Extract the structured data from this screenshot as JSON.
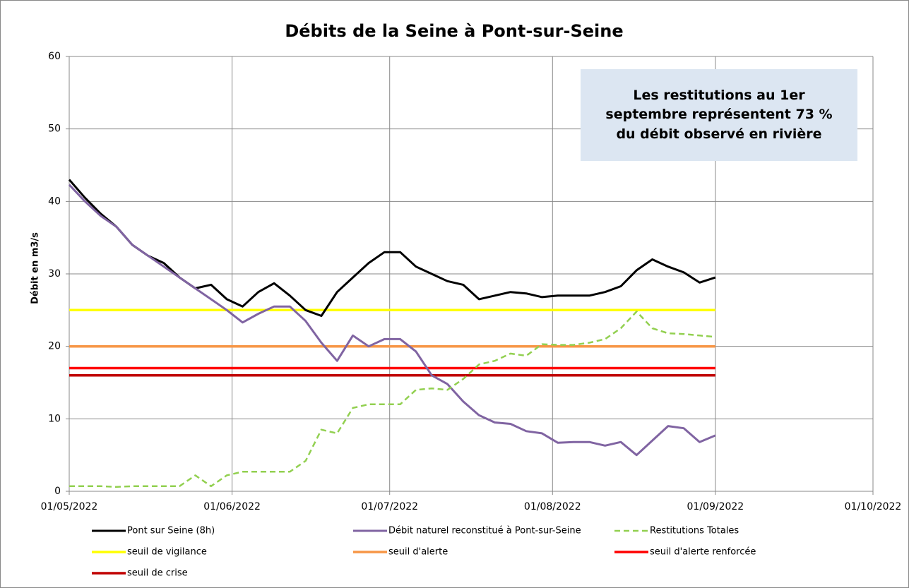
{
  "chart_data": {
    "type": "line",
    "title": "Débits de la Seine à Pont-sur-Seine",
    "y_label": "Débit en m3/s",
    "annotation": "Les restitutions au 1er septembre représentent 73 % du débit observé en rivière",
    "x": [
      "2022-05-01",
      "2022-05-04",
      "2022-05-07",
      "2022-05-10",
      "2022-05-13",
      "2022-05-16",
      "2022-05-19",
      "2022-05-22",
      "2022-05-25",
      "2022-05-28",
      "2022-05-31",
      "2022-06-03",
      "2022-06-06",
      "2022-06-09",
      "2022-06-12",
      "2022-06-15",
      "2022-06-18",
      "2022-06-21",
      "2022-06-24",
      "2022-06-27",
      "2022-06-30",
      "2022-07-03",
      "2022-07-06",
      "2022-07-09",
      "2022-07-12",
      "2022-07-15",
      "2022-07-18",
      "2022-07-21",
      "2022-07-24",
      "2022-07-27",
      "2022-07-30",
      "2022-08-02",
      "2022-08-05",
      "2022-08-08",
      "2022-08-11",
      "2022-08-14",
      "2022-08-17",
      "2022-08-20",
      "2022-08-23",
      "2022-08-26",
      "2022-08-29",
      "2022-09-01"
    ],
    "series": [
      {
        "name": "Pont sur Seine (8h)",
        "color": "#000000",
        "width": 3,
        "values": [
          43,
          40.5,
          38.3,
          36.5,
          34,
          32.5,
          31.5,
          29.5,
          28,
          28.5,
          26.5,
          25.5,
          27.5,
          28.7,
          27,
          25,
          24.2,
          27.5,
          29.5,
          31.5,
          33,
          33,
          31,
          30,
          29,
          28.5,
          26.5,
          27,
          27.5,
          27.3,
          26.8,
          27,
          27,
          27,
          27.5,
          28.3,
          30.5,
          32,
          31,
          30.2,
          28.8,
          29.5
        ]
      },
      {
        "name": "Débit naturel reconstitué à Pont-sur-Seine",
        "color": "#8064a2",
        "width": 3,
        "values": [
          42.3,
          40,
          38,
          36.5,
          34,
          32.5,
          31,
          29.5,
          28,
          26.5,
          25,
          23.3,
          24.5,
          25.5,
          25.5,
          23.5,
          20.5,
          18,
          21.5,
          20,
          21,
          21,
          19.3,
          16,
          14.8,
          12.4,
          10.5,
          9.5,
          9.3,
          8.3,
          8,
          6.7,
          6.8,
          6.8,
          6.3,
          6.8,
          5,
          7,
          9,
          8.7,
          6.8,
          7.7
        ]
      },
      {
        "name": "Restitutions Totales",
        "color": "#92d050",
        "width": 2.5,
        "dashed": true,
        "values": [
          0.7,
          0.7,
          0.7,
          0.6,
          0.7,
          0.7,
          0.7,
          0.7,
          2.2,
          0.7,
          2.2,
          2.7,
          2.7,
          2.7,
          2.7,
          4.2,
          8.5,
          8,
          11.5,
          12,
          12,
          12,
          14,
          14.2,
          14,
          15.5,
          17.5,
          18,
          19,
          18.7,
          20.3,
          20.2,
          20.2,
          20.5,
          21,
          22.5,
          24.8,
          22.5,
          21.8,
          21.7,
          21.5,
          21.3
        ]
      },
      {
        "name": "seuil de vigilance",
        "color": "#ffff00",
        "width": 3.5,
        "x": [
          "2022-05-01",
          "2022-09-01"
        ],
        "values": [
          25,
          25
        ]
      },
      {
        "name": "seuil d'alerte",
        "color": "#f79646",
        "width": 3.5,
        "x": [
          "2022-05-01",
          "2022-09-01"
        ],
        "values": [
          20,
          20
        ]
      },
      {
        "name": "seuil d'alerte renforcée",
        "color": "#ff0000",
        "width": 3.5,
        "x": [
          "2022-05-01",
          "2022-09-01"
        ],
        "values": [
          17,
          17
        ]
      },
      {
        "name": "seuil de crise",
        "color": "#c00000",
        "width": 3.5,
        "x": [
          "2022-05-01",
          "2022-09-01"
        ],
        "values": [
          16,
          16
        ]
      }
    ],
    "xlim": [
      "2022-05-01",
      "2022-10-01"
    ],
    "xticks": [
      {
        "value": "2022-05-01",
        "label": "01/05/2022"
      },
      {
        "value": "2022-06-01",
        "label": "01/06/2022"
      },
      {
        "value": "2022-07-01",
        "label": "01/07/2022"
      },
      {
        "value": "2022-08-01",
        "label": "01/08/2022"
      },
      {
        "value": "2022-09-01",
        "label": "01/09/2022"
      },
      {
        "value": "2022-10-01",
        "label": "01/10/2022"
      }
    ],
    "ylim": [
      0,
      60
    ],
    "yticks": [
      0,
      10,
      20,
      30,
      40,
      50,
      60
    ],
    "grid": true
  }
}
